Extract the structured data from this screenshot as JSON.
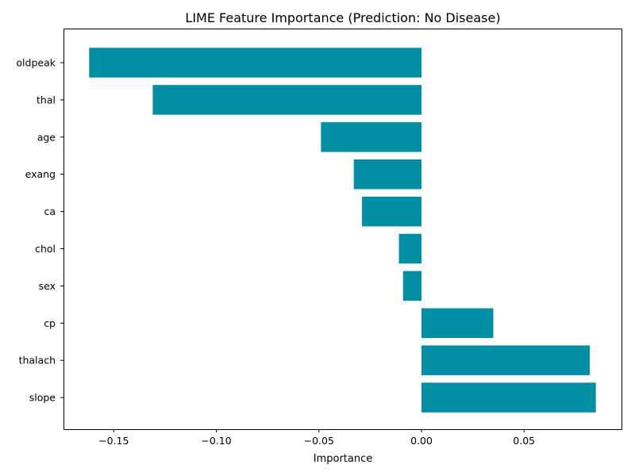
{
  "chart_data": {
    "type": "bar",
    "orientation": "horizontal",
    "title": "LIME Feature Importance (Prediction: No Disease)",
    "xlabel": "Importance",
    "ylabel": "",
    "categories": [
      "oldpeak",
      "thal",
      "age",
      "exang",
      "ca",
      "chol",
      "sex",
      "cp",
      "thalach",
      "slope"
    ],
    "values": [
      -0.162,
      -0.131,
      -0.049,
      -0.033,
      -0.029,
      -0.011,
      -0.009,
      0.035,
      0.082,
      0.085
    ],
    "xlim": [
      -0.1745,
      0.0975
    ],
    "xticks": [
      -0.15,
      -0.1,
      -0.05,
      0.0,
      0.05
    ],
    "xtick_labels": [
      "−0.15",
      "−0.10",
      "−0.05",
      "0.00",
      "0.05"
    ],
    "bar_color": "#008fa3",
    "grid": false,
    "legend": "none"
  }
}
